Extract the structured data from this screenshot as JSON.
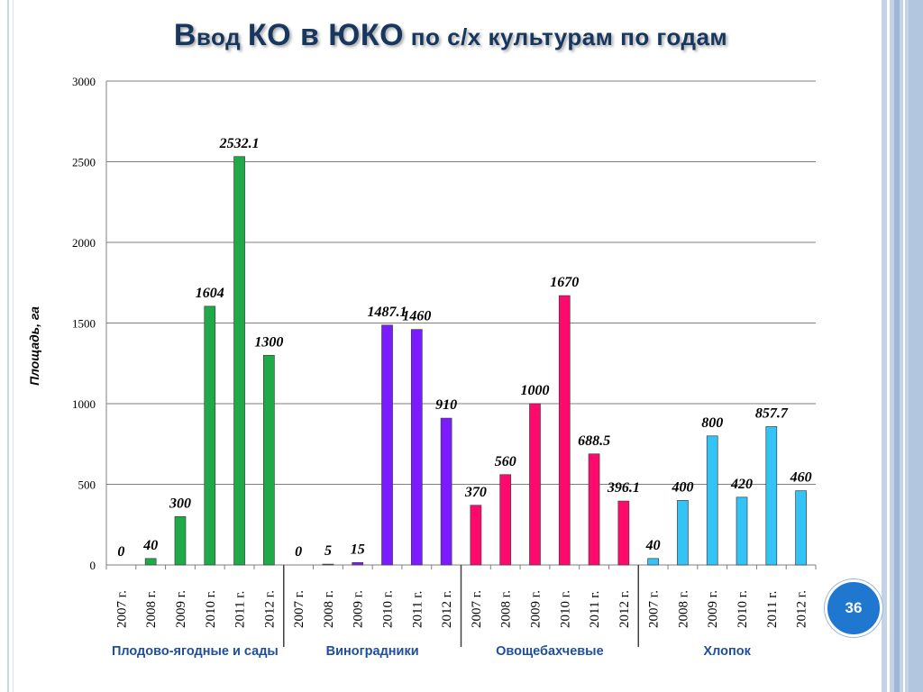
{
  "slide": {
    "title_lead": "В",
    "title_part1": "вод ",
    "title_part2": "КО в ЮКО",
    "title_part3": " по с/х культурам по годам",
    "page_number": "36"
  },
  "colors": {
    "title": "#17375e",
    "group_label": "#1f4e9c",
    "series": [
      "#1faa4a",
      "#7a1cff",
      "#ff0a6c",
      "#33c3f7"
    ]
  },
  "chart_data": {
    "type": "bar",
    "title": "Ввод КО в ЮКО по с/х культурам по годам",
    "ylabel": "Площадь, га",
    "xlabel": "",
    "ylim": [
      0,
      3000
    ],
    "yticks": [
      0,
      500,
      1000,
      1500,
      2000,
      2500,
      3000
    ],
    "grid": true,
    "legend": "none",
    "years": [
      "2007 г.",
      "2008 г.",
      "2009 г.",
      "2010 г.",
      "2011 г.",
      "2012 г."
    ],
    "groups": [
      {
        "name": "Плодово-ягодные и сады",
        "values": [
          0,
          40,
          300,
          1604,
          2532.1,
          1300
        ],
        "labels": [
          "0",
          "40",
          "300",
          "1604",
          "2532.1",
          "1300"
        ]
      },
      {
        "name": "Виноградники",
        "values": [
          0,
          5,
          15,
          1487.1,
          1460,
          910
        ],
        "labels": [
          "0",
          "5",
          "15",
          "1487.1",
          "1460",
          "910"
        ]
      },
      {
        "name": "Овощебахчевые",
        "values": [
          370,
          560,
          1000,
          1670,
          688.5,
          396.1
        ],
        "labels": [
          "370",
          "560",
          "1000",
          "1670",
          "688.5",
          "396.1"
        ]
      },
      {
        "name": "Хлопок",
        "values": [
          40,
          400,
          800,
          420,
          857.7,
          460
        ],
        "labels": [
          "40",
          "400",
          "800",
          "420",
          "857.7",
          "460"
        ]
      }
    ]
  }
}
